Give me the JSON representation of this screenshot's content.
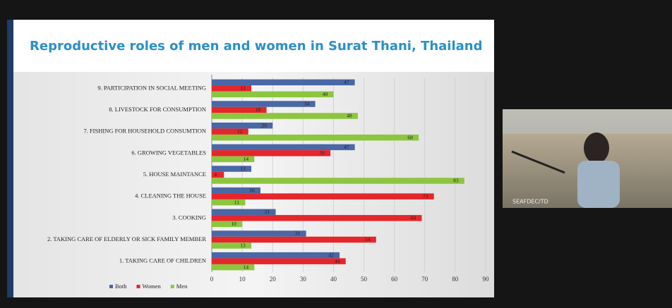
{
  "chart_data": {
    "type": "barh",
    "title": "Reproductive roles of men and women in Surat Thani, Thailand",
    "categories": [
      "9. PARTICIPATION IN SOCIAL MEETING",
      "8. LIVESTOCK FOR CONSUMPTION",
      "7. FISHING FOR HOUSEHOLD CONSUMTION",
      "6. GROWING VEGETABLES",
      "5. HOUSE MAINTANCE",
      "4. CLEANING  THE HOUSE",
      "3. COOKING",
      "2. TAKING CARE OF ELDERLY OR SICK FAMILY MEMBER",
      "1. TAKING CARE OF CHILDREN"
    ],
    "series": [
      {
        "name": "Both",
        "color": "#4a67a6",
        "values": [
          47,
          34,
          20,
          47,
          13,
          16,
          21,
          31,
          42
        ]
      },
      {
        "name": "Women",
        "color": "#e5262b",
        "values": [
          13,
          18,
          12,
          39,
          4,
          73,
          69,
          54,
          44
        ]
      },
      {
        "name": "Men",
        "color": "#8cc63f",
        "values": [
          40,
          48,
          68,
          14,
          83,
          11,
          10,
          13,
          14
        ]
      }
    ],
    "xlim": [
      0,
      90
    ],
    "xticks": [
      0,
      10,
      20,
      30,
      40,
      50,
      60,
      70,
      80,
      90
    ],
    "grid": true,
    "legend": "bottom-left"
  },
  "video_label": "SEAFDEC/TD"
}
